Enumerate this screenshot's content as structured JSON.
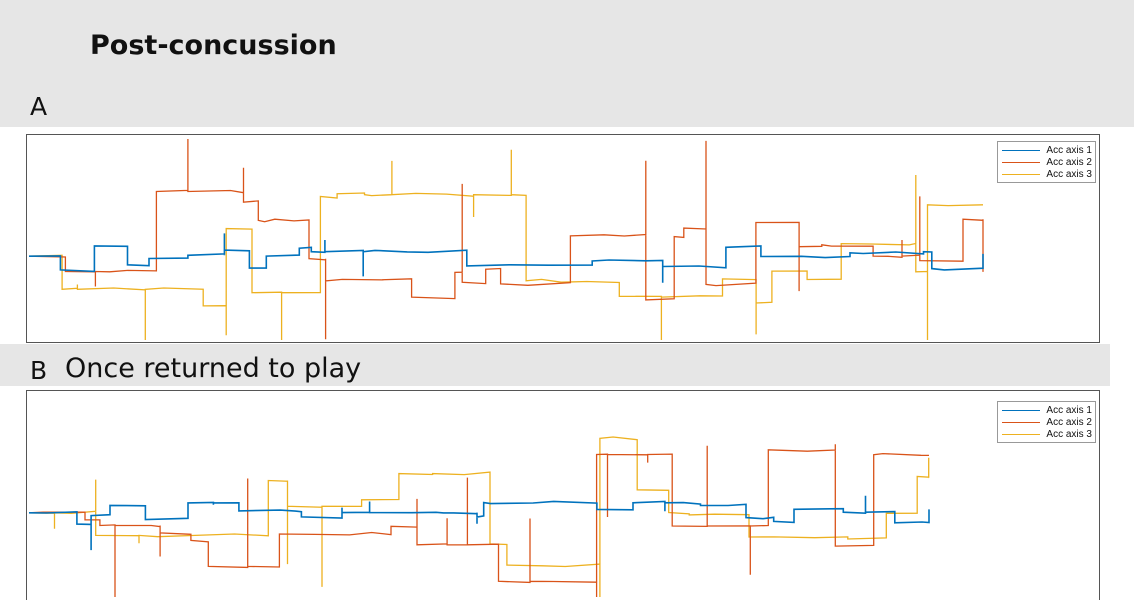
{
  "header": {
    "title": "Post-concussion"
  },
  "panels": [
    {
      "letter": "A",
      "subtitle": ""
    },
    {
      "letter": "B",
      "subtitle": "Once returned to play"
    }
  ],
  "colors": {
    "axis1": "#0072bd",
    "axis2": "#d95319",
    "axis3": "#edb120",
    "band": "#e6e6e6"
  },
  "chart_data": [
    {
      "type": "line",
      "title": "",
      "legend_position": "top-right",
      "grid": false,
      "series": [
        {
          "name": "Acc axis 1",
          "color": "#0072bd"
        },
        {
          "name": "Acc axis 2",
          "color": "#d95319"
        },
        {
          "name": "Acc axis 3",
          "color": "#edb120"
        }
      ],
      "x_extent_fraction": 0.89
    },
    {
      "type": "line",
      "title": "",
      "legend_position": "top-right",
      "grid": false,
      "series": [
        {
          "name": "Acc axis 1",
          "color": "#0072bd"
        },
        {
          "name": "Acc axis 2",
          "color": "#d95319"
        },
        {
          "name": "Acc axis 3",
          "color": "#edb120"
        }
      ],
      "x_extent_fraction": 0.84
    }
  ]
}
